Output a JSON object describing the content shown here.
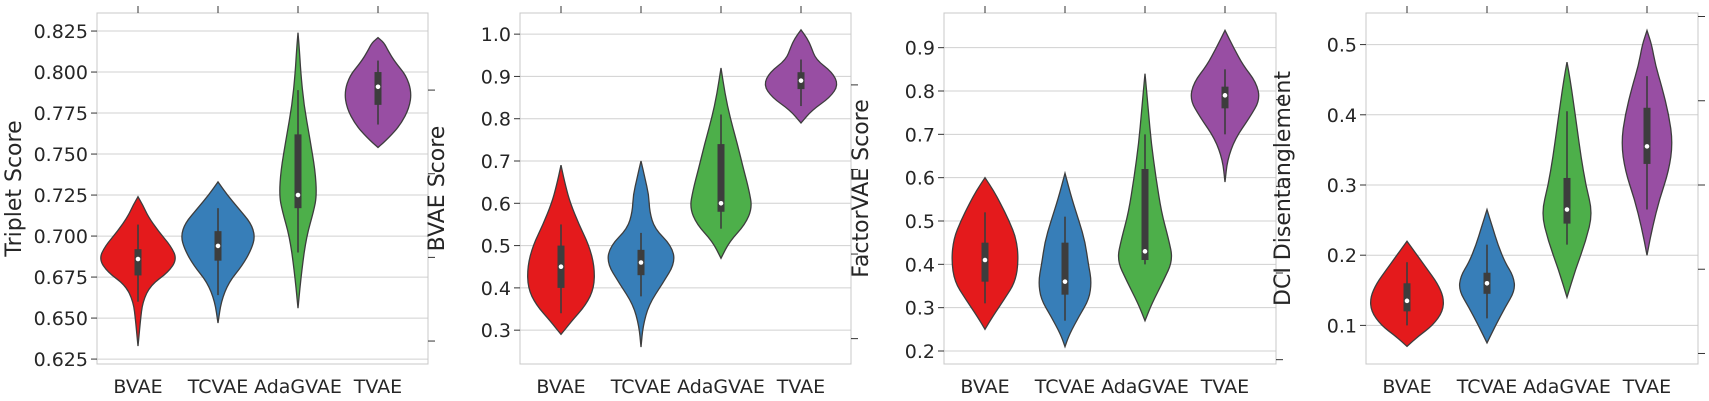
{
  "chart_data": [
    {
      "type": "violin",
      "ylabel": "Triplet Score",
      "ylim": [
        0.622,
        0.836
      ],
      "yticks": [
        0.625,
        0.65,
        0.675,
        0.7,
        0.725,
        0.75,
        0.775,
        0.8,
        0.825
      ],
      "ytick_labels": [
        "0.625",
        "0.650",
        "0.675",
        "0.700",
        "0.725",
        "0.750",
        "0.775",
        "0.800",
        "0.825"
      ],
      "right_ticks": [
        0.636,
        0.687,
        0.738,
        0.789,
        0.84
      ],
      "grid": "horizontal",
      "categories": [
        "BVAE",
        "TCVAE",
        "AdaGVAE",
        "TVAE"
      ],
      "colors": [
        "#e41a1c",
        "#377eb8",
        "#4daf4a",
        "#984ea3"
      ],
      "series": [
        {
          "min": 0.633,
          "max": 0.724,
          "q1": 0.676,
          "median": 0.686,
          "q3": 0.692,
          "whisker_low": 0.66,
          "whisker_high": 0.707,
          "profile": [
            [
              0.633,
              0.0
            ],
            [
              0.648,
              0.06
            ],
            [
              0.66,
              0.12
            ],
            [
              0.67,
              0.32
            ],
            [
              0.678,
              0.78
            ],
            [
              0.686,
              1.0
            ],
            [
              0.694,
              0.84
            ],
            [
              0.703,
              0.52
            ],
            [
              0.712,
              0.26
            ],
            [
              0.719,
              0.12
            ],
            [
              0.724,
              0.0
            ]
          ]
        },
        {
          "min": 0.647,
          "max": 0.733,
          "q1": 0.685,
          "median": 0.694,
          "q3": 0.703,
          "whisker_low": 0.664,
          "whisker_high": 0.717,
          "profile": [
            [
              0.647,
              0.0
            ],
            [
              0.66,
              0.08
            ],
            [
              0.672,
              0.28
            ],
            [
              0.682,
              0.62
            ],
            [
              0.692,
              0.86
            ],
            [
              0.7,
              0.95
            ],
            [
              0.708,
              0.84
            ],
            [
              0.717,
              0.52
            ],
            [
              0.725,
              0.24
            ],
            [
              0.733,
              0.0
            ]
          ]
        },
        {
          "min": 0.656,
          "max": 0.824,
          "q1": 0.717,
          "median": 0.725,
          "q3": 0.762,
          "whisker_low": 0.69,
          "whisker_high": 0.789,
          "profile": [
            [
              0.656,
              0.0
            ],
            [
              0.68,
              0.1
            ],
            [
              0.7,
              0.22
            ],
            [
              0.715,
              0.4
            ],
            [
              0.725,
              0.48
            ],
            [
              0.74,
              0.44
            ],
            [
              0.76,
              0.3
            ],
            [
              0.78,
              0.15
            ],
            [
              0.8,
              0.07
            ],
            [
              0.815,
              0.03
            ],
            [
              0.824,
              0.0
            ]
          ]
        },
        {
          "min": 0.754,
          "max": 0.821,
          "q1": 0.78,
          "median": 0.791,
          "q3": 0.8,
          "whisker_low": 0.768,
          "whisker_high": 0.807,
          "profile": [
            [
              0.754,
              0.0
            ],
            [
              0.76,
              0.28
            ],
            [
              0.768,
              0.58
            ],
            [
              0.778,
              0.8
            ],
            [
              0.788,
              0.86
            ],
            [
              0.798,
              0.72
            ],
            [
              0.806,
              0.44
            ],
            [
              0.813,
              0.26
            ],
            [
              0.818,
              0.15
            ],
            [
              0.821,
              0.0
            ]
          ]
        }
      ]
    },
    {
      "type": "violin",
      "ylabel": "BVAE Score",
      "ylim": [
        0.22,
        1.05
      ],
      "yticks": [
        0.3,
        0.4,
        0.5,
        0.6,
        0.7,
        0.8,
        0.9,
        1.0
      ],
      "ytick_labels": [
        "0.3",
        "0.4",
        "0.5",
        "0.6",
        "0.7",
        "0.8",
        "0.9",
        "1.0"
      ],
      "right_ticks": [
        0.28,
        0.48,
        0.68,
        0.88
      ],
      "grid": "horizontal",
      "categories": [
        "BVAE",
        "TCVAE",
        "AdaGVAE",
        "TVAE"
      ],
      "colors": [
        "#e41a1c",
        "#377eb8",
        "#4daf4a",
        "#984ea3"
      ],
      "series": [
        {
          "min": 0.29,
          "max": 0.69,
          "q1": 0.4,
          "median": 0.45,
          "q3": 0.5,
          "whisker_low": 0.34,
          "whisker_high": 0.55,
          "profile": [
            [
              0.29,
              0.0
            ],
            [
              0.32,
              0.26
            ],
            [
              0.36,
              0.64
            ],
            [
              0.4,
              0.85
            ],
            [
              0.45,
              0.86
            ],
            [
              0.5,
              0.72
            ],
            [
              0.55,
              0.46
            ],
            [
              0.6,
              0.24
            ],
            [
              0.64,
              0.12
            ],
            [
              0.69,
              0.0
            ]
          ]
        },
        {
          "min": 0.26,
          "max": 0.7,
          "q1": 0.43,
          "median": 0.46,
          "q3": 0.49,
          "whisker_low": 0.38,
          "whisker_high": 0.53,
          "profile": [
            [
              0.26,
              0.0
            ],
            [
              0.31,
              0.05
            ],
            [
              0.36,
              0.2
            ],
            [
              0.41,
              0.55
            ],
            [
              0.46,
              0.88
            ],
            [
              0.5,
              0.78
            ],
            [
              0.54,
              0.35
            ],
            [
              0.58,
              0.22
            ],
            [
              0.62,
              0.2
            ],
            [
              0.66,
              0.1
            ],
            [
              0.7,
              0.0
            ]
          ]
        },
        {
          "min": 0.47,
          "max": 0.92,
          "q1": 0.58,
          "median": 0.6,
          "q3": 0.74,
          "whisker_low": 0.54,
          "whisker_high": 0.81,
          "profile": [
            [
              0.47,
              0.0
            ],
            [
              0.51,
              0.22
            ],
            [
              0.55,
              0.62
            ],
            [
              0.59,
              0.8
            ],
            [
              0.63,
              0.72
            ],
            [
              0.68,
              0.58
            ],
            [
              0.74,
              0.42
            ],
            [
              0.8,
              0.24
            ],
            [
              0.86,
              0.1
            ],
            [
              0.92,
              0.0
            ]
          ]
        },
        {
          "min": 0.79,
          "max": 1.01,
          "q1": 0.87,
          "median": 0.89,
          "q3": 0.91,
          "whisker_low": 0.83,
          "whisker_high": 0.94,
          "profile": [
            [
              0.79,
              0.0
            ],
            [
              0.82,
              0.28
            ],
            [
              0.85,
              0.74
            ],
            [
              0.88,
              0.96
            ],
            [
              0.91,
              0.8
            ],
            [
              0.94,
              0.38
            ],
            [
              0.97,
              0.26
            ],
            [
              0.99,
              0.16
            ],
            [
              1.01,
              0.0
            ]
          ]
        }
      ]
    },
    {
      "type": "violin",
      "ylabel": "FactorVAE Score",
      "ylim": [
        0.17,
        0.98
      ],
      "yticks": [
        0.2,
        0.3,
        0.4,
        0.5,
        0.6,
        0.7,
        0.8,
        0.9
      ],
      "ytick_labels": [
        "0.2",
        "0.3",
        "0.4",
        "0.5",
        "0.6",
        "0.7",
        "0.8",
        "0.9"
      ],
      "right_ticks": [
        0.18,
        0.38,
        0.58,
        0.78
      ],
      "grid": "horizontal",
      "categories": [
        "BVAE",
        "TCVAE",
        "AdaGVAE",
        "TVAE"
      ],
      "colors": [
        "#e41a1c",
        "#377eb8",
        "#4daf4a",
        "#984ea3"
      ],
      "series": [
        {
          "min": 0.25,
          "max": 0.6,
          "q1": 0.36,
          "median": 0.41,
          "q3": 0.45,
          "whisker_low": 0.31,
          "whisker_high": 0.52,
          "profile": [
            [
              0.25,
              0.0
            ],
            [
              0.28,
              0.2
            ],
            [
              0.32,
              0.5
            ],
            [
              0.36,
              0.78
            ],
            [
              0.41,
              0.86
            ],
            [
              0.46,
              0.8
            ],
            [
              0.5,
              0.62
            ],
            [
              0.54,
              0.4
            ],
            [
              0.57,
              0.22
            ],
            [
              0.6,
              0.0
            ]
          ]
        },
        {
          "min": 0.21,
          "max": 0.61,
          "q1": 0.33,
          "median": 0.36,
          "q3": 0.45,
          "whisker_low": 0.27,
          "whisker_high": 0.51,
          "profile": [
            [
              0.21,
              0.0
            ],
            [
              0.24,
              0.12
            ],
            [
              0.28,
              0.36
            ],
            [
              0.32,
              0.62
            ],
            [
              0.36,
              0.68
            ],
            [
              0.4,
              0.6
            ],
            [
              0.45,
              0.52
            ],
            [
              0.5,
              0.36
            ],
            [
              0.55,
              0.18
            ],
            [
              0.61,
              0.0
            ]
          ]
        },
        {
          "min": 0.27,
          "max": 0.84,
          "q1": 0.41,
          "median": 0.43,
          "q3": 0.62,
          "whisker_low": 0.4,
          "whisker_high": 0.7,
          "profile": [
            [
              0.27,
              0.0
            ],
            [
              0.31,
              0.18
            ],
            [
              0.36,
              0.46
            ],
            [
              0.41,
              0.72
            ],
            [
              0.46,
              0.6
            ],
            [
              0.52,
              0.42
            ],
            [
              0.6,
              0.28
            ],
            [
              0.68,
              0.16
            ],
            [
              0.76,
              0.08
            ],
            [
              0.84,
              0.0
            ]
          ]
        },
        {
          "min": 0.59,
          "max": 0.94,
          "q1": 0.76,
          "median": 0.79,
          "q3": 0.81,
          "whisker_low": 0.7,
          "whisker_high": 0.85,
          "profile": [
            [
              0.59,
              0.0
            ],
            [
              0.64,
              0.06
            ],
            [
              0.69,
              0.26
            ],
            [
              0.74,
              0.64
            ],
            [
              0.78,
              0.9
            ],
            [
              0.82,
              0.8
            ],
            [
              0.86,
              0.46
            ],
            [
              0.9,
              0.22
            ],
            [
              0.94,
              0.0
            ]
          ]
        }
      ]
    },
    {
      "type": "violin",
      "ylabel": "DCI Disentanglement",
      "ylim": [
        0.045,
        0.545
      ],
      "yticks": [
        0.1,
        0.2,
        0.3,
        0.4,
        0.5
      ],
      "ytick_labels": [
        "0.1",
        "0.2",
        "0.3",
        "0.4",
        "0.5"
      ],
      "right_ticks": [
        0.06,
        0.18,
        0.3,
        0.42,
        0.54
      ],
      "grid": "horizontal",
      "categories": [
        "BVAE",
        "TCVAE",
        "AdaGVAE",
        "TVAE"
      ],
      "colors": [
        "#e41a1c",
        "#377eb8",
        "#4daf4a",
        "#984ea3"
      ],
      "series": [
        {
          "min": 0.07,
          "max": 0.22,
          "q1": 0.12,
          "median": 0.135,
          "q3": 0.16,
          "whisker_low": 0.1,
          "whisker_high": 0.19,
          "profile": [
            [
              0.07,
              0.0
            ],
            [
              0.085,
              0.3
            ],
            [
              0.1,
              0.66
            ],
            [
              0.12,
              0.92
            ],
            [
              0.14,
              0.94
            ],
            [
              0.16,
              0.78
            ],
            [
              0.18,
              0.52
            ],
            [
              0.2,
              0.26
            ],
            [
              0.22,
              0.0
            ]
          ]
        },
        {
          "min": 0.075,
          "max": 0.265,
          "q1": 0.145,
          "median": 0.16,
          "q3": 0.175,
          "whisker_low": 0.11,
          "whisker_high": 0.215,
          "profile": [
            [
              0.075,
              0.0
            ],
            [
              0.1,
              0.22
            ],
            [
              0.125,
              0.46
            ],
            [
              0.15,
              0.72
            ],
            [
              0.17,
              0.68
            ],
            [
              0.19,
              0.46
            ],
            [
              0.215,
              0.28
            ],
            [
              0.24,
              0.14
            ],
            [
              0.265,
              0.0
            ]
          ]
        },
        {
          "min": 0.14,
          "max": 0.475,
          "q1": 0.245,
          "median": 0.265,
          "q3": 0.31,
          "whisker_low": 0.215,
          "whisker_high": 0.405,
          "profile": [
            [
              0.14,
              0.0
            ],
            [
              0.18,
              0.22
            ],
            [
              0.22,
              0.48
            ],
            [
              0.26,
              0.66
            ],
            [
              0.3,
              0.48
            ],
            [
              0.34,
              0.36
            ],
            [
              0.38,
              0.26
            ],
            [
              0.42,
              0.16
            ],
            [
              0.45,
              0.08
            ],
            [
              0.475,
              0.0
            ]
          ]
        },
        {
          "min": 0.2,
          "max": 0.52,
          "q1": 0.33,
          "median": 0.355,
          "q3": 0.41,
          "whisker_low": 0.265,
          "whisker_high": 0.455,
          "profile": [
            [
              0.2,
              0.0
            ],
            [
              0.24,
              0.14
            ],
            [
              0.28,
              0.32
            ],
            [
              0.32,
              0.56
            ],
            [
              0.36,
              0.66
            ],
            [
              0.4,
              0.56
            ],
            [
              0.44,
              0.38
            ],
            [
              0.47,
              0.22
            ],
            [
              0.5,
              0.12
            ],
            [
              0.52,
              0.0
            ]
          ]
        }
      ]
    }
  ]
}
